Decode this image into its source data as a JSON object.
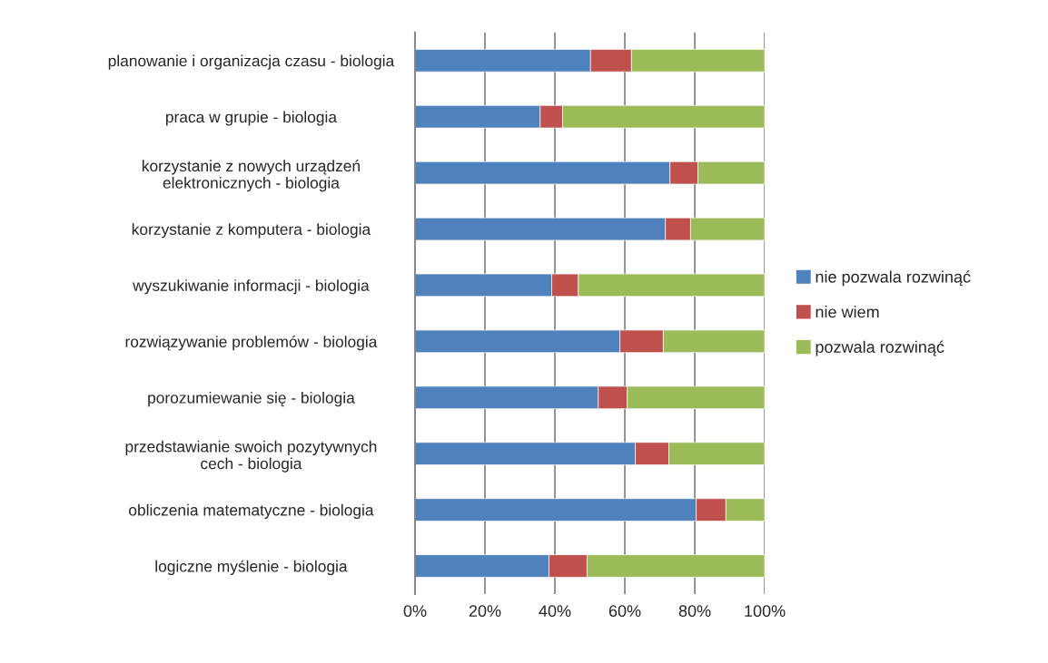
{
  "chart_data": {
    "type": "bar",
    "orientation": "horizontal",
    "stacked": true,
    "categories": [
      "planowanie i organizacja czasu - biologia",
      "praca w grupie - biologia",
      "korzystanie z nowych urządzeń\nelektronicznych - biologia",
      "korzystanie z komputera - biologia",
      "wyszukiwanie informacji - biologia",
      "rozwiązywanie problemów - biologia",
      "porozumiewanie się - biologia",
      "przedstawianie swoich pozytywnych\ncech - biologia",
      "obliczenia matematyczne - biologia",
      "logiczne myślenie - biologia"
    ],
    "series": [
      {
        "name": "nie pozwala rozwinąć",
        "color": "#4f81bd",
        "values": [
          50.2,
          35.8,
          72.9,
          71.6,
          39.1,
          58.6,
          52.4,
          63.0,
          80.4,
          38.3
        ]
      },
      {
        "name": "nie wiem",
        "color": "#c0504d",
        "values": [
          11.7,
          6.4,
          8.0,
          7.2,
          7.6,
          12.4,
          8.3,
          9.6,
          8.5,
          10.9
        ]
      },
      {
        "name": "pozwala rozwinąć",
        "color": "#9bbb59",
        "values": [
          38.1,
          57.8,
          19.1,
          21.2,
          53.3,
          29.0,
          39.3,
          27.4,
          11.1,
          50.8
        ]
      }
    ],
    "xlim": [
      0,
      100
    ],
    "xticks": [
      {
        "value": 0,
        "label": "0%"
      },
      {
        "value": 20,
        "label": "20%"
      },
      {
        "value": 40,
        "label": "40%"
      },
      {
        "value": 60,
        "label": "60%"
      },
      {
        "value": 80,
        "label": "80%"
      },
      {
        "value": 100,
        "label": "100%"
      }
    ],
    "grid": "x",
    "legend": "right"
  }
}
